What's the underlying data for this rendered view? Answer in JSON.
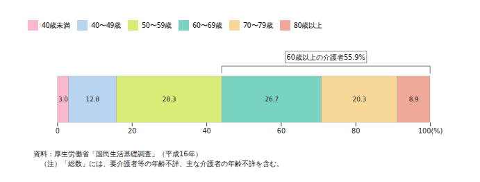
{
  "chart_data": {
    "type": "bar",
    "orientation": "horizontal",
    "stacked": true,
    "categories": [
      null
    ],
    "series": [
      {
        "name": "40歳未満",
        "color": "#f9b8cc",
        "values": [
          3.0
        ],
        "value_labels": [
          "3.0"
        ]
      },
      {
        "name": "40〜49歳",
        "color": "#b8d4f0",
        "values": [
          12.8
        ],
        "value_labels": [
          "12.8"
        ]
      },
      {
        "name": "50〜59歳",
        "color": "#d8ec78",
        "values": [
          28.3
        ],
        "value_labels": [
          "28.3"
        ]
      },
      {
        "name": "60〜69歳",
        "color": "#78d4c0",
        "values": [
          26.7
        ],
        "value_labels": [
          "26.7"
        ]
      },
      {
        "name": "70〜79歳",
        "color": "#f8d898",
        "values": [
          20.3
        ],
        "value_labels": [
          "20.3"
        ]
      },
      {
        "name": "80歳以上",
        "color": "#f0a898",
        "values": [
          8.9
        ],
        "value_labels": [
          "8.9"
        ]
      }
    ],
    "xlim": [
      0,
      100
    ],
    "xticks": [
      0,
      20,
      40,
      60,
      80,
      {
        "value": 100,
        "label": "100(%)"
      }
    ],
    "grid": true,
    "legend": "top",
    "data_labels": true,
    "tick_labels": "x",
    "annotations": [
      {
        "text": "60歳以上の介護者55.9%",
        "x": [
          44.1,
          100.0
        ]
      }
    ],
    "notes": [
      "資料：厚生労働省「国民生活基礎調査」（平成16年）",
      "　（注）「総数」には、要介護者等の年齢不詳、主な介護者の年齢不詳を含む。"
    ]
  }
}
